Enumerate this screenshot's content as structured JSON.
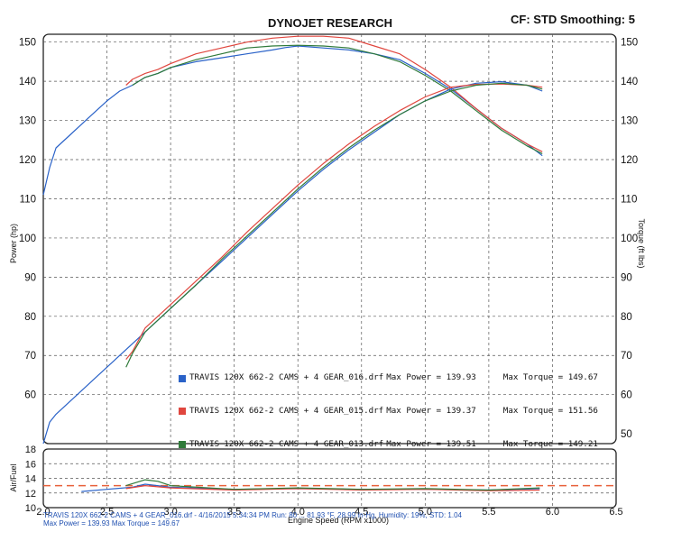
{
  "header": {
    "title": "DYNOJET RESEARCH",
    "conditions": "CF: STD  Smoothing: 5"
  },
  "legend": [
    {
      "run": "TRAVIS",
      "file": "120X 662-2 CAMS + 4 GEAR_016.drf",
      "max_power_label": "Max Power = 139.93",
      "max_torque_label": "Max Torque = 149.67",
      "color": "#2a62c8"
    },
    {
      "run": "TRAVIS",
      "file": "120X 662-2 CAMS + 4 GEAR_015.drf",
      "max_power_label": "Max Power = 139.37",
      "max_torque_label": "Max Torque = 151.56",
      "color": "#e0463e"
    },
    {
      "run": "TRAVIS",
      "file": "120X 662-2 CAMS + 4 GEAR_013.drf",
      "max_power_label": "Max Power = 139.51",
      "max_torque_label": "Max Torque = 149.21",
      "color": "#2f7a3a"
    }
  ],
  "footer": {
    "line1": "TRAVIS  120X 662-2 CAMS + 4 GEAR_016.drf - 4/16/2015 5:34:34 PM Run: 80 ... 81.93 °F, 28.99 in-Hg, Humidity: 19%, STD: 1.04",
    "line2": "Max Power = 139.93  Max Torque = 149.67"
  },
  "chart_data": [
    {
      "type": "line",
      "title": "DYNOJET RESEARCH",
      "xlabel": "Engine Speed (RPM x1000)",
      "ylabel_left": "Power (hp)",
      "ylabel_right": "Torque (ft lbs)",
      "xlim": [
        2.0,
        6.5
      ],
      "ylim_left": [
        47.5,
        152
      ],
      "ylim_right": [
        47.5,
        152
      ],
      "x_ticks": [
        "2.0",
        "2.5",
        "3.0",
        "3.5",
        "4.0",
        "4.5",
        "5.0",
        "5.5",
        "6.0",
        "6.5"
      ],
      "y_ticks_left": [
        "60",
        "70",
        "80",
        "90",
        "100",
        "110",
        "120",
        "130",
        "140",
        "150"
      ],
      "y_ticks_right": [
        "50",
        "60",
        "70",
        "80",
        "90",
        "100",
        "110",
        "120",
        "130",
        "140",
        "150"
      ],
      "grid": true,
      "series": [
        {
          "name": "TRAVIS 120X 662-2 CAMS + 4 GEAR_016.drf Torque",
          "color": "#2a62c8",
          "x": [
            2.0,
            2.05,
            2.1,
            2.2,
            2.3,
            2.4,
            2.5,
            2.6,
            2.7,
            2.8,
            2.9,
            3.0,
            3.2,
            3.4,
            3.6,
            3.8,
            3.9,
            4.0,
            4.2,
            4.4,
            4.6,
            4.8,
            5.0,
            5.2,
            5.4,
            5.6,
            5.8,
            5.92
          ],
          "values": [
            111,
            118,
            123,
            126,
            129,
            132,
            135,
            137.5,
            139,
            141,
            142,
            143.5,
            145,
            146,
            147,
            148,
            148.6,
            149,
            148.5,
            148,
            147,
            145.5,
            142,
            138,
            133,
            128,
            124,
            121
          ]
        },
        {
          "name": "TRAVIS 120X 662-2 CAMS + 4 GEAR_015.drf Torque",
          "color": "#e0463e",
          "x": [
            2.65,
            2.7,
            2.8,
            2.9,
            3.0,
            3.2,
            3.4,
            3.6,
            3.8,
            4.0,
            4.2,
            4.4,
            4.6,
            4.8,
            5.0,
            5.2,
            5.4,
            5.6,
            5.8,
            5.92
          ],
          "values": [
            139,
            140.5,
            142,
            143,
            144.5,
            147,
            148.5,
            150,
            151,
            151.5,
            151.5,
            151,
            149,
            147,
            143,
            138.5,
            133,
            128,
            124,
            122
          ]
        },
        {
          "name": "TRAVIS 120X 662-2 CAMS + 4 GEAR_013.drf Torque",
          "color": "#2f7a3a",
          "x": [
            2.7,
            2.8,
            2.9,
            3.0,
            3.2,
            3.4,
            3.6,
            3.8,
            4.0,
            4.2,
            4.4,
            4.6,
            4.8,
            5.0,
            5.2,
            5.4,
            5.6,
            5.8,
            5.92
          ],
          "values": [
            139,
            141,
            142,
            143.5,
            145.5,
            147,
            148.5,
            149,
            149.2,
            149,
            148.5,
            147,
            145,
            141.5,
            137.5,
            132.5,
            127.5,
            123.5,
            121.5
          ]
        },
        {
          "name": "TRAVIS 120X 662-2 CAMS + 4 GEAR_016.drf Power",
          "color": "#2a62c8",
          "x": [
            2.0,
            2.05,
            2.1,
            2.2,
            2.4,
            2.6,
            2.8,
            3.0,
            3.2,
            3.4,
            3.6,
            3.8,
            4.0,
            4.2,
            4.4,
            4.6,
            4.8,
            5.0,
            5.2,
            5.4,
            5.6,
            5.8,
            5.92
          ],
          "values": [
            47.5,
            53,
            55,
            58,
            64,
            70,
            76,
            82,
            88,
            94,
            100,
            106,
            112,
            117.5,
            122.5,
            127,
            131.5,
            135,
            138,
            139.5,
            139.9,
            139,
            137.5
          ]
        },
        {
          "name": "TRAVIS 120X 662-2 CAMS + 4 GEAR_015.drf Power",
          "color": "#e0463e",
          "x": [
            2.65,
            2.7,
            2.8,
            3.0,
            3.2,
            3.4,
            3.6,
            3.8,
            4.0,
            4.2,
            4.4,
            4.6,
            4.8,
            5.0,
            5.2,
            5.4,
            5.6,
            5.8,
            5.92
          ],
          "values": [
            69,
            71,
            77,
            83,
            89,
            95,
            101.5,
            107.5,
            113.5,
            119,
            124,
            128.5,
            132.5,
            136,
            138.5,
            139.2,
            139.3,
            139,
            138.5
          ]
        },
        {
          "name": "TRAVIS 120X 662-2 CAMS + 4 GEAR_013.drf Power",
          "color": "#2f7a3a",
          "x": [
            2.65,
            2.7,
            2.8,
            3.0,
            3.2,
            3.4,
            3.6,
            3.8,
            4.0,
            4.2,
            4.4,
            4.6,
            4.8,
            5.0,
            5.2,
            5.4,
            5.6,
            5.8,
            5.92
          ],
          "values": [
            67,
            70.5,
            76,
            82,
            88,
            94.5,
            100.5,
            106.5,
            112.5,
            118,
            123,
            127.5,
            131.5,
            135,
            137.5,
            139,
            139.5,
            139,
            138
          ]
        }
      ]
    },
    {
      "type": "line",
      "title": "",
      "xlabel": "Engine Speed (RPM x1000)",
      "ylabel": "Air/Fuel",
      "xlim": [
        2.0,
        6.5
      ],
      "ylim": [
        10,
        18
      ],
      "x_ticks": [
        "2.0",
        "2.5",
        "3.0",
        "3.5",
        "4.0",
        "4.5",
        "5.0",
        "5.5",
        "6.0",
        "6.5"
      ],
      "y_ticks": [
        "10",
        "12",
        "14",
        "16",
        "18"
      ],
      "grid": true,
      "reference_line": {
        "value": 13.0,
        "color": "#e8603a",
        "style": "dashed"
      },
      "series": [
        {
          "name": "TRAVIS 120X 662-2 CAMS + 4 GEAR_016.drf AFR",
          "color": "#2a62c8",
          "x": [
            2.3,
            2.5,
            2.7,
            2.8,
            3.0,
            3.5,
            4.0,
            4.5,
            5.0,
            5.5,
            5.9
          ],
          "values": [
            12.2,
            12.5,
            12.8,
            13.2,
            12.8,
            12.5,
            12.6,
            12.5,
            12.5,
            12.4,
            12.6
          ]
        },
        {
          "name": "TRAVIS 120X 662-2 CAMS + 4 GEAR_015.drf AFR",
          "color": "#e0463e",
          "x": [
            2.65,
            2.8,
            3.0,
            3.5,
            4.0,
            4.5,
            5.0,
            5.5,
            5.9
          ],
          "values": [
            12.6,
            13.0,
            12.7,
            12.4,
            12.6,
            12.4,
            12.5,
            12.3,
            12.4
          ]
        },
        {
          "name": "TRAVIS 120X 662-2 CAMS + 4 GEAR_013.drf AFR",
          "color": "#2f7a3a",
          "x": [
            2.65,
            2.8,
            2.9,
            3.0,
            3.5,
            4.0,
            4.5,
            5.0,
            5.5,
            5.9
          ],
          "values": [
            13.0,
            13.8,
            13.6,
            13.0,
            12.5,
            12.7,
            12.5,
            12.6,
            12.4,
            12.7
          ]
        }
      ]
    }
  ]
}
